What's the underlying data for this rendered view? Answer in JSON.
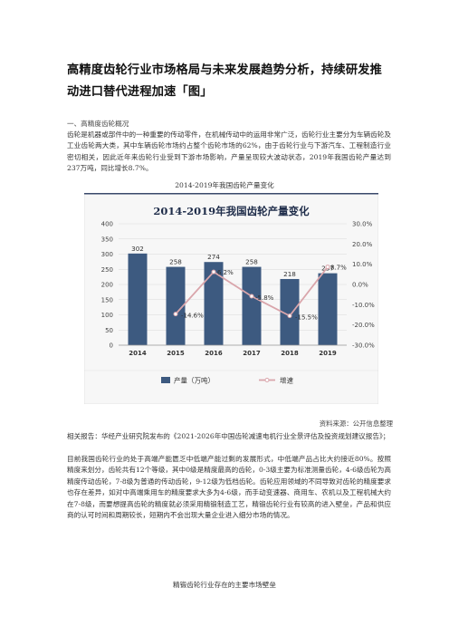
{
  "article": {
    "title_line1": "高精度齿轮行业市场格局与未来发展趋势分析，持续研发推",
    "title_line2": "动进口替代进程加速「图」",
    "section_heading": "一、高精度齿轮概况",
    "para1": "齿轮是机器或部件中的一种重要的传动零件，在机械传动中的运用非常广泛，齿轮行业主要分为车辆齿轮及工业齿轮两大类，其中车辆齿轮市场约占整个齿轮市场的62%，由于齿轮行业与下游汽车、工程制造行业密切相关，因此近年来齿轮行业受到下游市场影响，产量呈现较大波动状态，2019年我国齿轮产量达到237万吨，同比增长8.7%。",
    "caption1": "2014-2019年我国齿轮产量变化",
    "source": "资料来源：公开信息整理",
    "para2": "相关报告：华经产业研究院发布的《2021-2026年中国齿轮减速电机行业全景评估及投资规划建议报告》；",
    "para3": "目前我国齿轮行业的处于高端产能匮乏中低端产能过剩的发展形式，中低端产品占比大约接近80%。按照精度来划分，齿轮共有12个等级，其中0级是精度最高的齿轮，0-3级主要为标准测量齿轮，4-6级齿轮为高精度传动齿轮，7-8级为普通的传动齿轮，9-12级为低档齿轮。齿轮应用领域的不同导致对齿轮的精度要求也存在差异，如对中高端乘用车的精度要求大多为4-6级，而手动变速器、商用车、农机以及工程机械大约在7-8级，而要想提高齿轮的精度就必须采用精锻制造工艺，精锻齿轮行业有较高的进入壁垒，产品和供应商的认可时间和周期较长，短期内不会出现大量企业进入细分市场的情况。",
    "caption2": "精锻齿轮行业存在的主要市场壁垒"
  },
  "chart_data": {
    "type": "bar",
    "title": "2014-2019年我国齿轮产量变化",
    "categories": [
      "2014",
      "2015",
      "2016",
      "2017",
      "2018",
      "2019"
    ],
    "series": [
      {
        "name": "产量（万吨）",
        "kind": "bar",
        "axis": "left",
        "values": [
          302,
          258,
          274,
          258,
          218,
          237
        ],
        "labels": [
          "302",
          "258",
          "274",
          "258",
          "218",
          "237"
        ]
      },
      {
        "name": "增速",
        "kind": "line",
        "axis": "right",
        "values": [
          null,
          -14.6,
          6.2,
          -5.8,
          -15.5,
          8.7
        ],
        "labels": [
          "",
          "-14.6%",
          "6.2%",
          "-5.8%",
          "-15.5%",
          "8.7%"
        ]
      }
    ],
    "y_left": {
      "min": 0,
      "max": 400,
      "ticks": [
        "0",
        "50",
        "100",
        "150",
        "200",
        "250",
        "300",
        "350",
        "400"
      ]
    },
    "y_right": {
      "min": -30,
      "max": 30,
      "ticks": [
        "-30.0%",
        "-20.0%",
        "-10.0%",
        "0.0%",
        "10.0%",
        "20.0%",
        "30.0%"
      ]
    },
    "grid": true,
    "legend": "bottom",
    "colors": {
      "bar": "#3d5a80",
      "line": "#d9a5ab",
      "marker": "#ffffff",
      "header": "#3a4a6b"
    }
  }
}
